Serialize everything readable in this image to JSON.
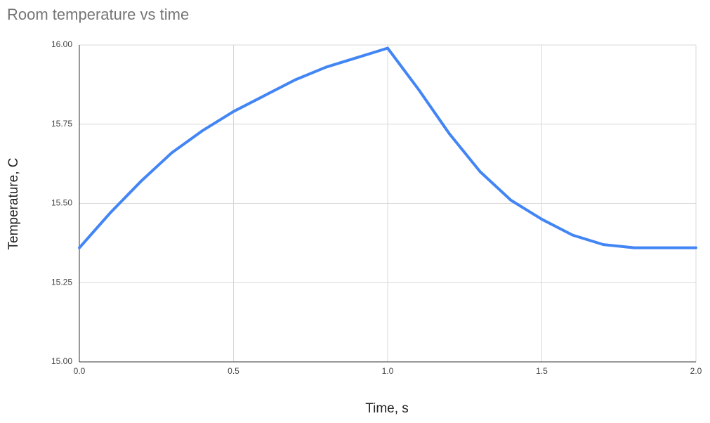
{
  "chart_data": {
    "type": "line",
    "title": "Room temperature vs time",
    "x_label": "Time, s",
    "y_label": "Temperature, C",
    "x": [
      0,
      0.1,
      0.2,
      0.3,
      0.4,
      0.5,
      0.6,
      0.7,
      0.8,
      0.9,
      1.0,
      1.1,
      1.2,
      1.3,
      1.4,
      1.5,
      1.6,
      1.7,
      1.8,
      1.9,
      2.0
    ],
    "series": [
      {
        "name": "Temperature",
        "color": "#4285f4",
        "values": [
          15.36,
          15.47,
          15.57,
          15.66,
          15.73,
          15.79,
          15.84,
          15.89,
          15.93,
          15.96,
          15.99,
          15.86,
          15.72,
          15.6,
          15.51,
          15.45,
          15.4,
          15.37,
          15.36,
          15.36,
          15.36
        ]
      }
    ],
    "xlim": [
      0,
      2
    ],
    "xticks": [
      {
        "value": 0,
        "label": "0.0"
      },
      0.5,
      {
        "value": 1,
        "label": "1.0"
      },
      1.5,
      {
        "value": 2,
        "label": "2.0"
      }
    ],
    "ylim": [
      15,
      16
    ],
    "yticks": [
      {
        "value": 15,
        "label": "15.00"
      },
      15.25,
      {
        "value": 15.5,
        "label": "15.50"
      },
      15.75,
      {
        "value": 16,
        "label": "16.00"
      }
    ],
    "grid": true
  }
}
